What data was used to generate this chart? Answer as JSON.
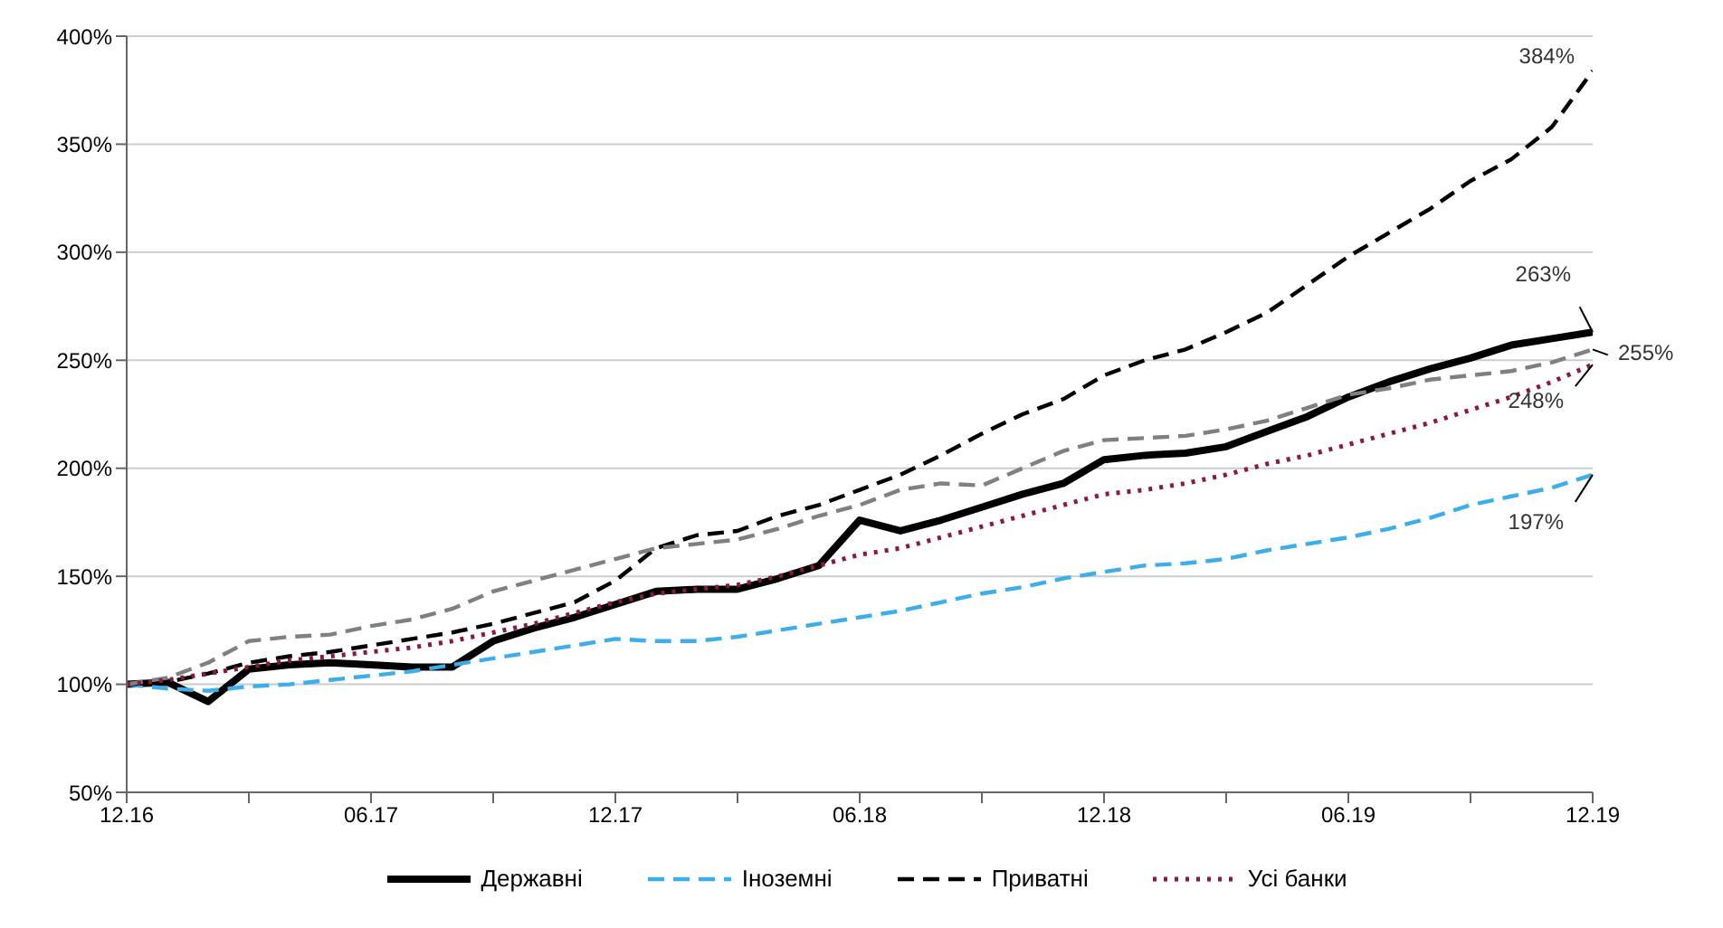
{
  "chart_data": {
    "type": "line",
    "categories": [
      "12.16",
      null,
      null,
      null,
      null,
      null,
      "06.17",
      null,
      null,
      null,
      null,
      null,
      "12.17",
      null,
      null,
      null,
      null,
      null,
      "06.18",
      null,
      null,
      null,
      null,
      null,
      "12.18",
      null,
      null,
      null,
      null,
      null,
      "06.19",
      null,
      null,
      null,
      null,
      null,
      "12.19"
    ],
    "series": [
      {
        "name": "Державні",
        "color": "#000000",
        "line_style": "solid",
        "values": [
          100,
          101,
          92,
          107,
          109,
          110,
          109,
          108,
          108,
          120,
          126,
          131,
          137,
          143,
          144,
          144,
          149,
          155,
          176,
          171,
          176,
          182,
          188,
          193,
          204,
          206,
          207,
          210,
          217,
          224,
          233,
          240,
          246,
          251,
          257,
          260,
          263
        ]
      },
      {
        "name": "Іноземні",
        "color": "#3daee9",
        "line_style": "dashed",
        "values": [
          100,
          98,
          97,
          99,
          100,
          102,
          104,
          106,
          109,
          112,
          115,
          118,
          121,
          120,
          120,
          122,
          125,
          128,
          131,
          134,
          138,
          142,
          145,
          149,
          152,
          155,
          156,
          158,
          162,
          165,
          168,
          172,
          177,
          183,
          187,
          191,
          197
        ]
      },
      {
        "name": "Приватні",
        "color": "#000000",
        "line_style": "dashed",
        "values": [
          100,
          101,
          105,
          110,
          113,
          115,
          118,
          121,
          124,
          128,
          133,
          138,
          148,
          163,
          169,
          171,
          178,
          183,
          190,
          197,
          206,
          216,
          225,
          232,
          243,
          250,
          255,
          263,
          272,
          285,
          298,
          309,
          320,
          333,
          343,
          358,
          384
        ]
      },
      {
        "color": "#808080",
        "line_style": "dashed",
        "values": [
          100,
          103,
          110,
          120,
          122,
          123,
          127,
          130,
          135,
          143,
          148,
          153,
          158,
          163,
          165,
          167,
          172,
          178,
          183,
          190,
          193,
          192,
          200,
          208,
          213,
          214,
          215,
          218,
          222,
          228,
          234,
          237,
          241,
          243,
          245,
          249,
          255
        ]
      },
      {
        "name": "Усі банки",
        "color": "#8b1a3a",
        "line_style": "dotted",
        "values": [
          100,
          102,
          105,
          108,
          111,
          113,
          115,
          117,
          120,
          124,
          128,
          133,
          138,
          142,
          144,
          146,
          150,
          155,
          160,
          163,
          168,
          173,
          178,
          183,
          188,
          190,
          193,
          197,
          202,
          206,
          211,
          216,
          221,
          227,
          233,
          240,
          248
        ]
      }
    ],
    "ylim": [
      50,
      400
    ],
    "yticks": [
      {
        "value": 50,
        "label": "50%"
      },
      {
        "value": 100,
        "label": "100%"
      },
      {
        "value": 150,
        "label": "150%"
      },
      {
        "value": 200,
        "label": "200%"
      },
      {
        "value": 250,
        "label": "250%"
      },
      {
        "value": 300,
        "label": "300%"
      },
      {
        "value": 350,
        "label": "350%"
      },
      {
        "value": 400,
        "label": "400%"
      }
    ],
    "grid": "y",
    "legend": "bottom",
    "annotations": [
      {
        "text": "384%",
        "x": "12.19",
        "y": 384
      },
      {
        "text": "263%",
        "x": "12.19",
        "y": 263
      },
      {
        "text": "255%",
        "x": "12.19",
        "y": 255
      },
      {
        "text": "248%",
        "x": "12.19",
        "y": 248
      },
      {
        "text": "197%",
        "x": "12.19",
        "y": 197
      }
    ]
  }
}
